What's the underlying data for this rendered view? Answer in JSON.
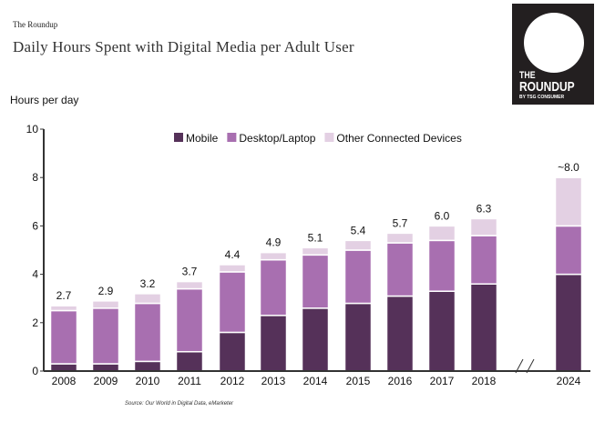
{
  "header": {
    "brand": "The Roundup",
    "title": "Daily Hours Spent with Digital Media per Adult User"
  },
  "logo": {
    "line1": "THE",
    "line2": "ROUNDUP",
    "line3": "BY TSG CONSUMER"
  },
  "source": "Source: Our World in Digital Data, eMarketer",
  "chart_data": {
    "type": "bar",
    "stacked": true,
    "title": "Daily Hours Spent with Digital Media per Adult User",
    "xlabel": "",
    "ylabel": "Hours per day",
    "ylim": [
      0,
      10
    ],
    "yticks": [
      "0",
      "2",
      "4",
      "6",
      "8",
      "10"
    ],
    "legend_position": "top",
    "categories": [
      "2008",
      "2009",
      "2010",
      "2011",
      "2012",
      "2013",
      "2014",
      "2015",
      "2016",
      "2017",
      "2018",
      "2024"
    ],
    "axis_break_before": "2024",
    "series": [
      {
        "name": "Mobile",
        "color": "#553159",
        "values": [
          0.3,
          0.3,
          0.4,
          0.8,
          1.6,
          2.3,
          2.6,
          2.8,
          3.1,
          3.3,
          3.6,
          4.0
        ]
      },
      {
        "name": "Desktop/Laptop",
        "color": "#a86fb0",
        "values": [
          2.2,
          2.3,
          2.4,
          2.6,
          2.5,
          2.3,
          2.2,
          2.2,
          2.2,
          2.1,
          2.0,
          2.0
        ]
      },
      {
        "name": "Other Connected Devices",
        "color": "#e3d0e3",
        "values": [
          0.2,
          0.3,
          0.4,
          0.3,
          0.3,
          0.3,
          0.3,
          0.4,
          0.4,
          0.6,
          0.7,
          2.0
        ]
      }
    ],
    "total_labels": [
      "2.7",
      "2.9",
      "3.2",
      "3.7",
      "4.4",
      "4.9",
      "5.1",
      "5.4",
      "5.7",
      "6.0",
      "6.3",
      "~8.0"
    ]
  }
}
